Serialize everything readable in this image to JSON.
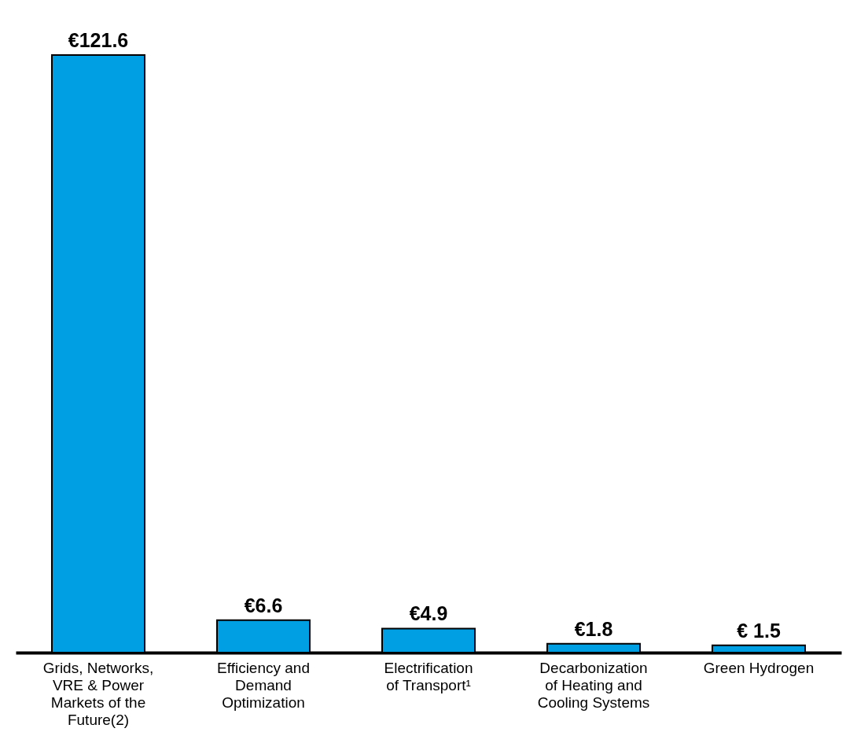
{
  "chart_data": {
    "type": "bar",
    "categories": [
      "Grids, Networks, VRE & Power Markets of the Future(2)",
      "Efficiency and Demand Optimization",
      "Electrification of Transport¹",
      "Decarbonization of Heating and Cooling Systems",
      "Green Hydrogen"
    ],
    "values": [
      121.6,
      6.6,
      4.9,
      1.8,
      1.5
    ],
    "value_labels": [
      "€121.6",
      "€6.6",
      "€4.9",
      "€1.8",
      "€ 1.5"
    ],
    "color": "#009fe3"
  }
}
